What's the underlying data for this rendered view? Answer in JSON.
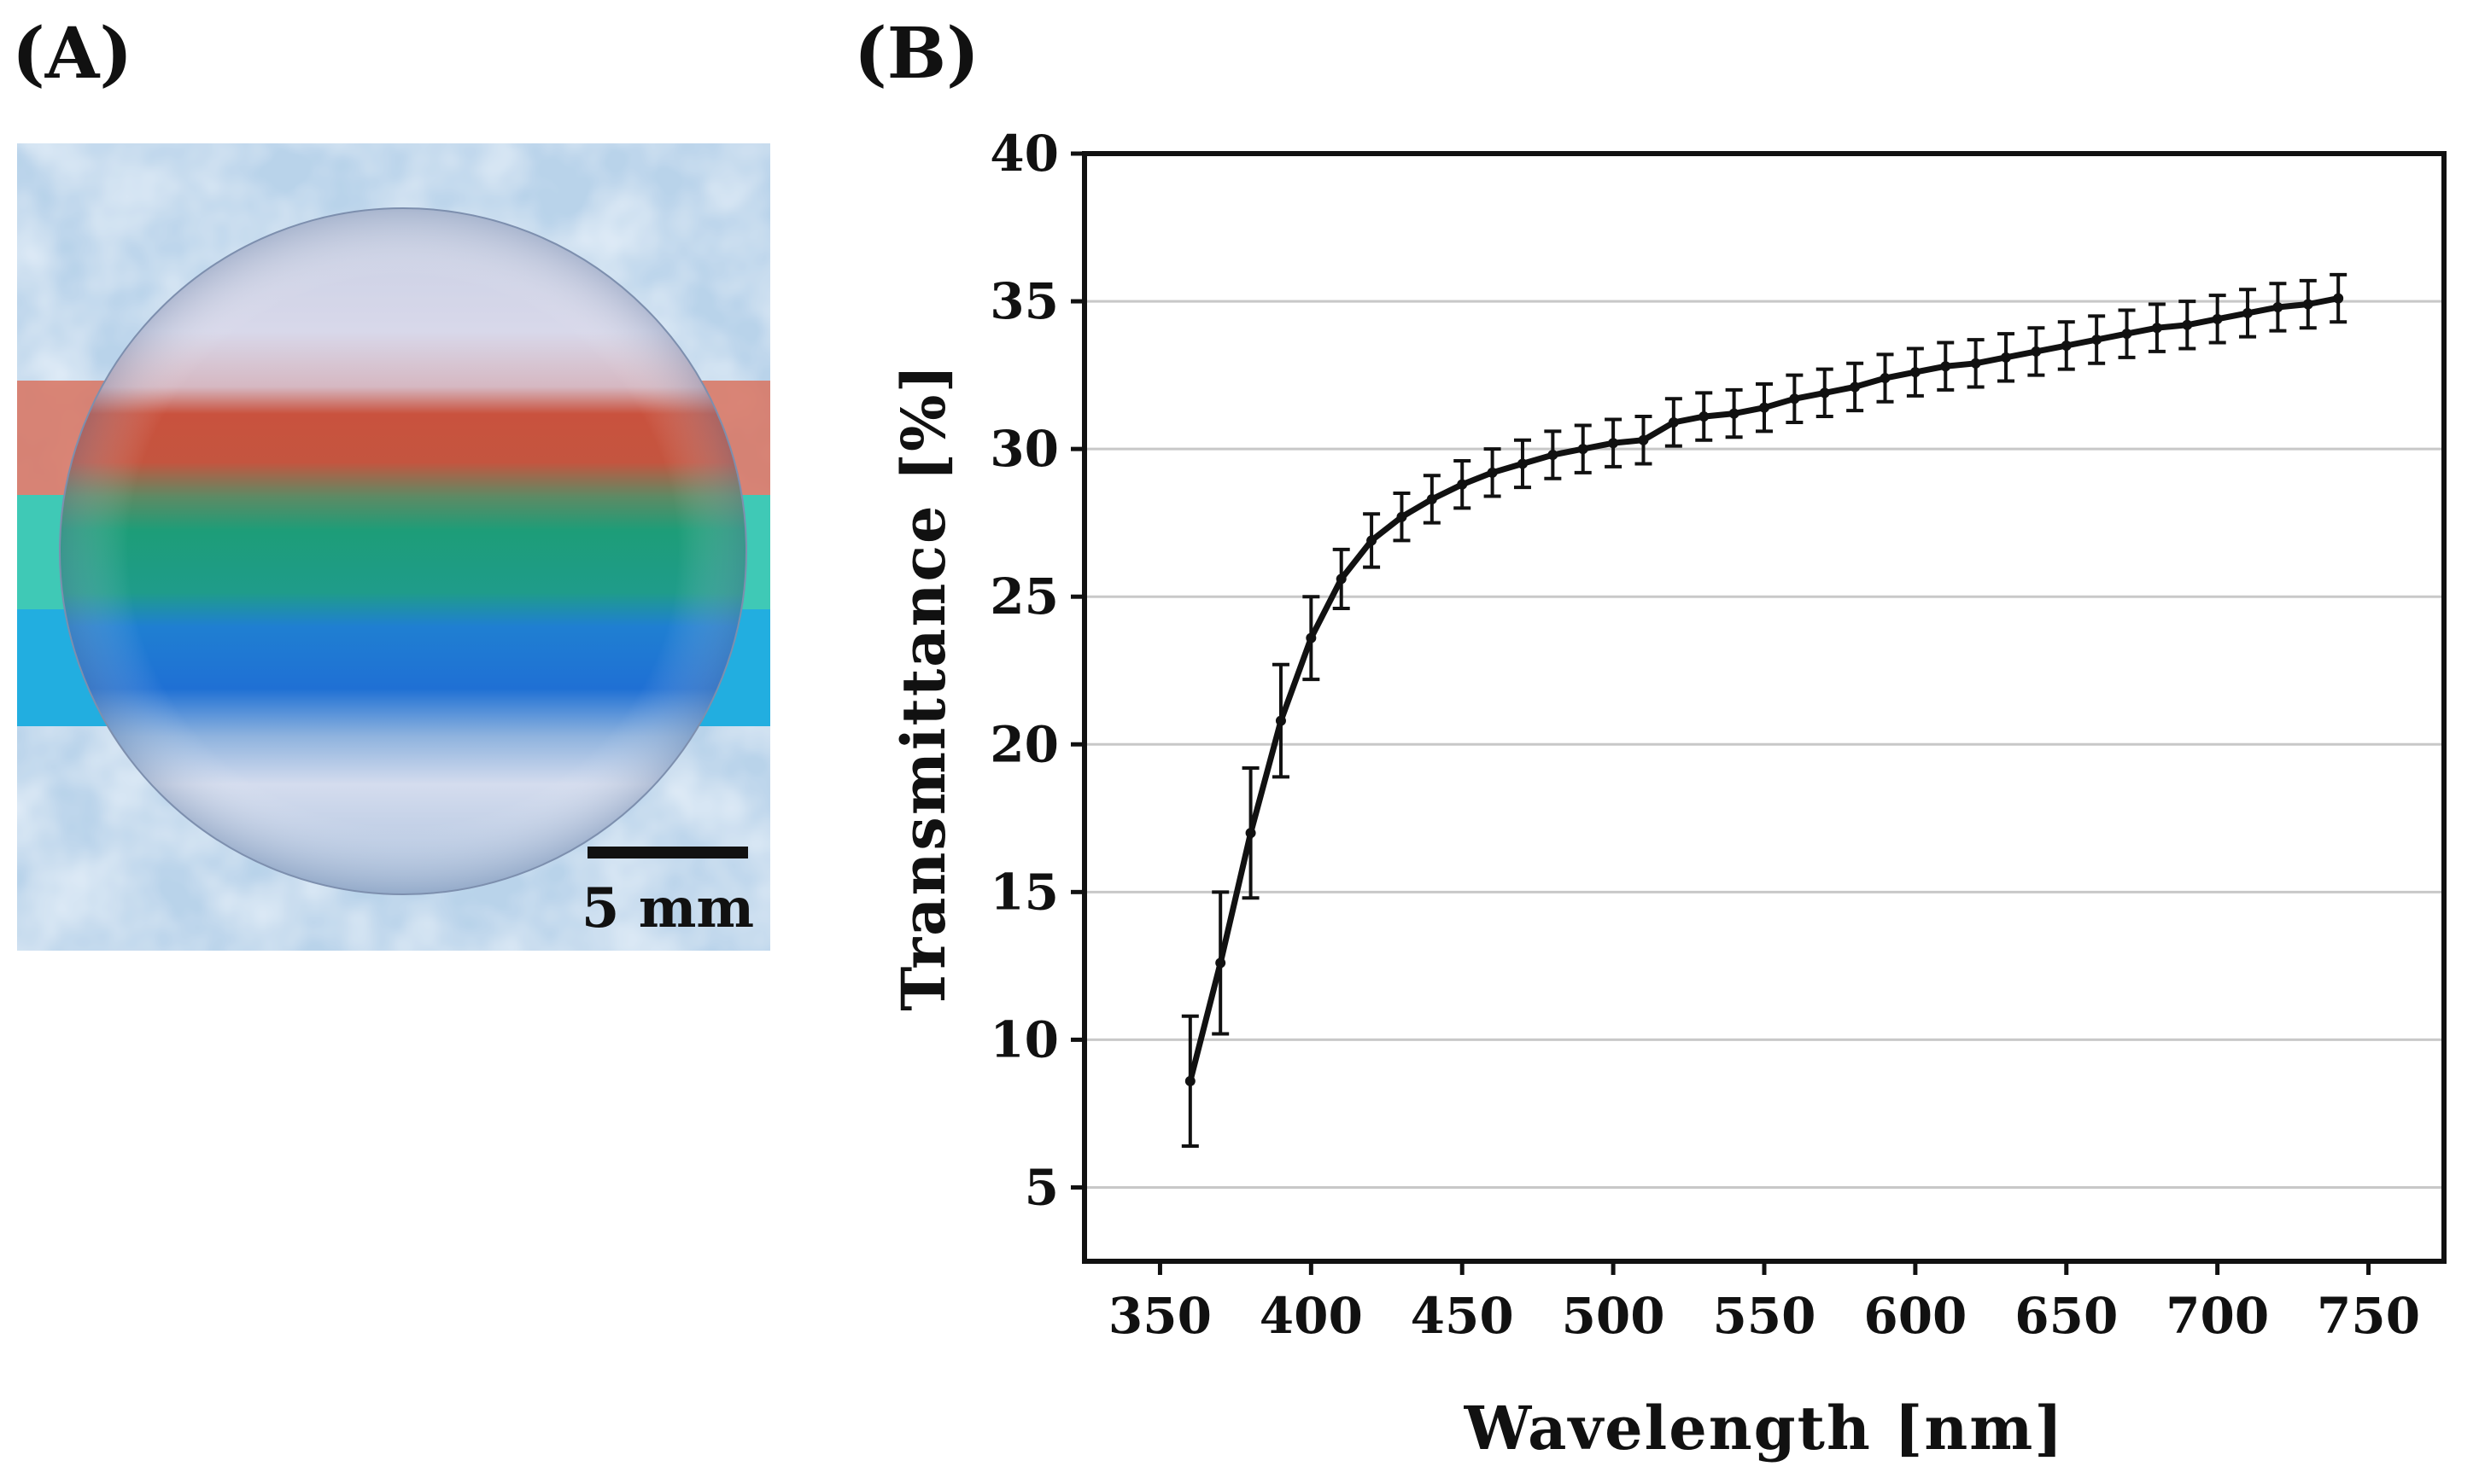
{
  "panels": {
    "a_label": "(A)",
    "b_label": "(B)"
  },
  "photo": {
    "scale_bar_label": "5 mm",
    "stripe_colors": [
      "#d9735f",
      "#3fc9b6",
      "#22aee0"
    ],
    "background_color": "#b9d3ea",
    "disc_color": "#d3dcee"
  },
  "chart_data": {
    "type": "line",
    "title": "",
    "xlabel": "Wavelength [nm]",
    "ylabel": "Transmittance [%]",
    "xlim": [
      325,
      775
    ],
    "ylim": [
      2.5,
      40
    ],
    "xticks": [
      350,
      400,
      450,
      500,
      550,
      600,
      650,
      700,
      750
    ],
    "yticks": [
      5,
      10,
      15,
      20,
      25,
      30,
      35,
      40
    ],
    "xtick_labels": [
      "350",
      "400",
      "450",
      "500",
      "550",
      "600",
      "650",
      "700",
      "750"
    ],
    "ytick_labels": [
      "5",
      "10",
      "15",
      "20",
      "25",
      "30",
      "35",
      "40"
    ],
    "grid": true,
    "series": [
      {
        "name": "Transmittance",
        "color": "#111111",
        "x": [
          360,
          370,
          380,
          390,
          400,
          410,
          420,
          430,
          440,
          450,
          460,
          470,
          480,
          490,
          500,
          510,
          520,
          530,
          540,
          550,
          560,
          570,
          580,
          590,
          600,
          610,
          620,
          630,
          640,
          650,
          660,
          670,
          680,
          690,
          700,
          710,
          720,
          730,
          740
        ],
        "y": [
          8.6,
          12.6,
          17.0,
          20.8,
          23.6,
          25.6,
          26.9,
          27.7,
          28.3,
          28.8,
          29.2,
          29.5,
          29.8,
          30.0,
          30.2,
          30.3,
          30.9,
          31.1,
          31.2,
          31.4,
          31.7,
          31.9,
          32.1,
          32.4,
          32.6,
          32.8,
          32.9,
          33.1,
          33.3,
          33.5,
          33.7,
          33.9,
          34.1,
          34.2,
          34.4,
          34.6,
          34.8,
          34.9,
          35.1
        ],
        "error": [
          2.2,
          2.4,
          2.2,
          1.9,
          1.4,
          1.0,
          0.9,
          0.8,
          0.8,
          0.8,
          0.8,
          0.8,
          0.8,
          0.8,
          0.8,
          0.8,
          0.8,
          0.8,
          0.8,
          0.8,
          0.8,
          0.8,
          0.8,
          0.8,
          0.8,
          0.8,
          0.8,
          0.8,
          0.8,
          0.8,
          0.8,
          0.8,
          0.8,
          0.8,
          0.8,
          0.8,
          0.8,
          0.8,
          0.8
        ]
      }
    ]
  }
}
